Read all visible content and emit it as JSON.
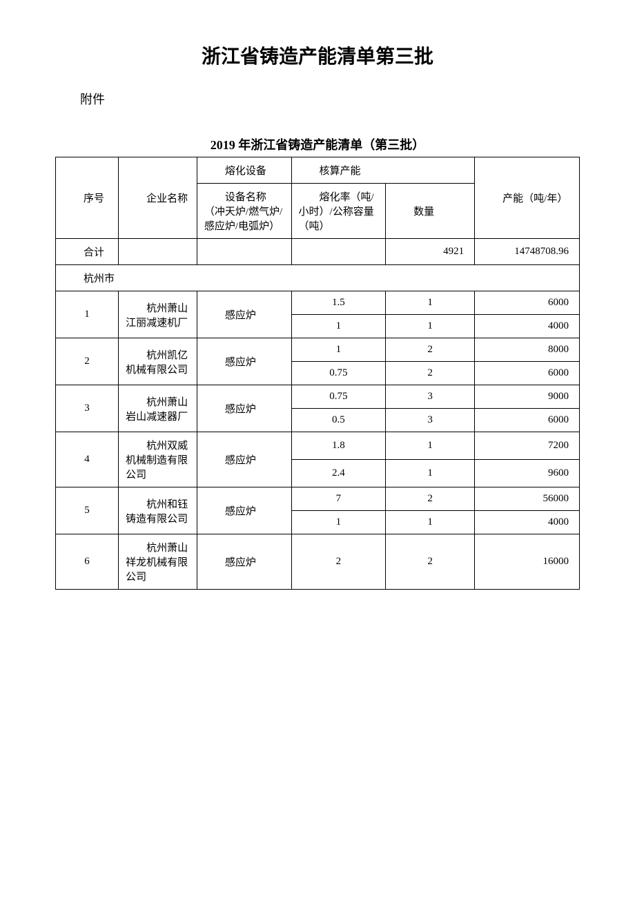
{
  "title": "浙江省铸造产能清单第三批",
  "attachment_label": "附件",
  "sub_title": "2019 年浙江省铸造产能清单（第三批）",
  "headers": {
    "seq": "序号",
    "company": "企业名称",
    "melting_equipment": "熔化设备",
    "capacity_header": "核算产能",
    "equipment_name": "设备名称（冲天炉/燃气炉/感应炉/电弧炉）",
    "melt_rate": "熔化率（吨/小时）/公称容量（吨）",
    "quantity": "数量",
    "capacity": "产能（吨/年）"
  },
  "total_row": {
    "label": "合计",
    "quantity": "4921",
    "capacity": "14748708.96"
  },
  "section": "杭州市",
  "rows": [
    {
      "seq": "1",
      "company": "杭州萧山江丽减速机厂",
      "equipment": "感应炉",
      "specs": [
        {
          "rate": "1.5",
          "qty": "1",
          "cap": "6000"
        },
        {
          "rate": "1",
          "qty": "1",
          "cap": "4000"
        }
      ]
    },
    {
      "seq": "2",
      "company": "杭州凯亿机械有限公司",
      "equipment": "感应炉",
      "specs": [
        {
          "rate": "1",
          "qty": "2",
          "cap": "8000"
        },
        {
          "rate": "0.75",
          "qty": "2",
          "cap": "6000"
        }
      ]
    },
    {
      "seq": "3",
      "company": "杭州萧山岩山减速器厂",
      "equipment": "感应炉",
      "specs": [
        {
          "rate": "0.75",
          "qty": "3",
          "cap": "9000"
        },
        {
          "rate": "0.5",
          "qty": "3",
          "cap": "6000"
        }
      ]
    },
    {
      "seq": "4",
      "company": "杭州双威机械制造有限公司",
      "equipment": "感应炉",
      "specs": [
        {
          "rate": "1.8",
          "qty": "1",
          "cap": "7200"
        },
        {
          "rate": "2.4",
          "qty": "1",
          "cap": "9600"
        }
      ]
    },
    {
      "seq": "5",
      "company": "杭州和钰铸造有限公司",
      "equipment": "感应炉",
      "specs": [
        {
          "rate": "7",
          "qty": "2",
          "cap": "56000"
        },
        {
          "rate": "1",
          "qty": "1",
          "cap": "4000"
        }
      ]
    },
    {
      "seq": "6",
      "company": "杭州萧山祥龙机械有限公司",
      "equipment": "感应炉",
      "specs": [
        {
          "rate": "2",
          "qty": "2",
          "cap": "16000"
        }
      ]
    }
  ]
}
